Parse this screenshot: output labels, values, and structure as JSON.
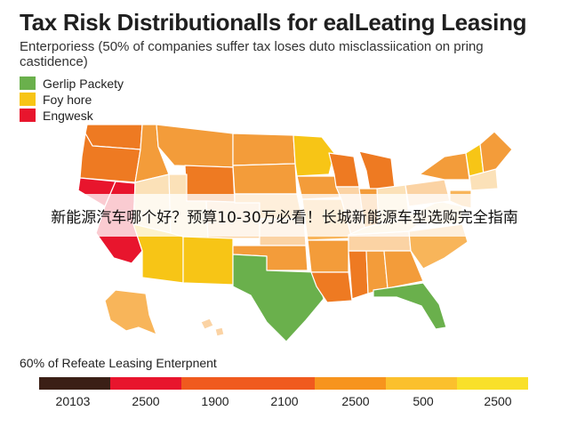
{
  "title": "Tax Risk Distributionalls for ealLeating Leasing",
  "subtitle": "Enterporiess (50% of companies suffer tax loses duto misclassiication on pring castidence)",
  "legend": [
    {
      "label": "Gerlip Packety",
      "color": "#6ab04c"
    },
    {
      "label": "Foy hore",
      "color": "#f7c516"
    },
    {
      "label": "Engwesk",
      "color": "#e8152d"
    }
  ],
  "banner": "新能源汽车哪个好？预算10-30万必看！长城新能源车型选购完全指南",
  "scale": {
    "title": "60% of Refeate Leasing Enterpnent",
    "colors": [
      "#3b1f16",
      "#e8152d",
      "#f05a1e",
      "#f7941d",
      "#fbc02d",
      "#f9e02a"
    ],
    "labels": [
      "20103",
      "2500",
      "1900",
      "2100",
      "2500",
      "500",
      "2500"
    ]
  },
  "map_colors": {
    "orange": "#f39c3a",
    "deep_orange": "#ee7a22",
    "light_orange": "#f8b55a",
    "yellow": "#f7c516",
    "green": "#6ab04c",
    "red": "#e8152d",
    "pale": "#fbe1b8",
    "peach": "#fbd3a4"
  }
}
